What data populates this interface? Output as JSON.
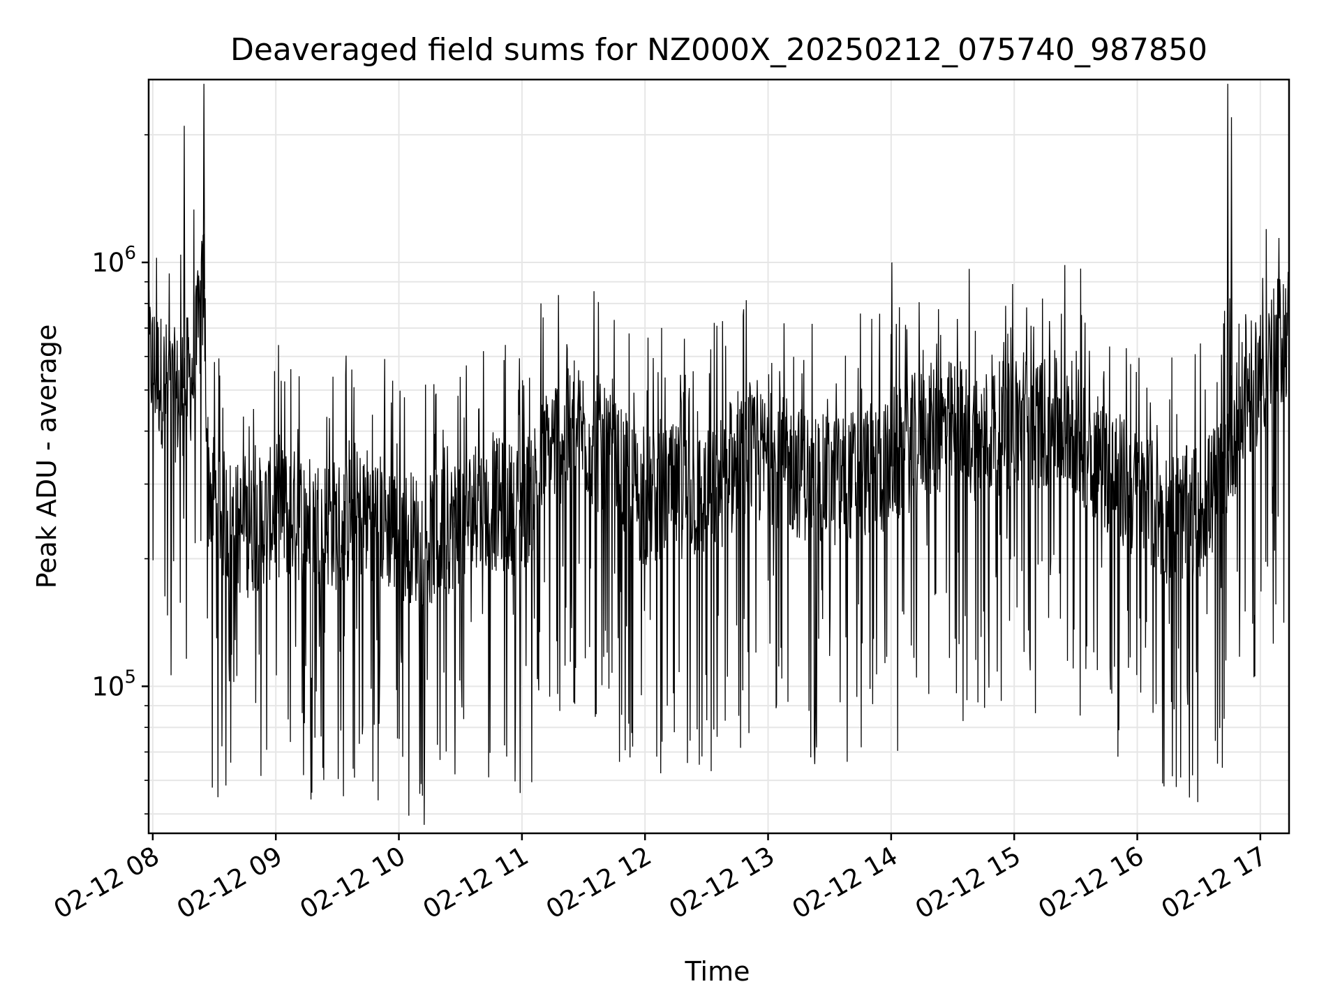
{
  "chart_data": {
    "type": "line",
    "title": "Deaveraged field sums for NZ000X_20250212_075740_987850",
    "xlabel": "Time",
    "ylabel": "Peak ADU - average",
    "yscale": "log",
    "ylim": [
      45000,
      2700000
    ],
    "xlim": [
      "2025-02-12 07:58",
      "2025-02-12 17:14"
    ],
    "grid": true,
    "line_color": "#000000",
    "x_ticks": [
      {
        "value": "2025-02-12 08:00",
        "label": "02-12 08"
      },
      {
        "value": "2025-02-12 09:00",
        "label": "02-12 09"
      },
      {
        "value": "2025-02-12 10:00",
        "label": "02-12 10"
      },
      {
        "value": "2025-02-12 11:00",
        "label": "02-12 11"
      },
      {
        "value": "2025-02-12 12:00",
        "label": "02-12 12"
      },
      {
        "value": "2025-02-12 13:00",
        "label": "02-12 13"
      },
      {
        "value": "2025-02-12 14:00",
        "label": "02-12 14"
      },
      {
        "value": "2025-02-12 15:00",
        "label": "02-12 15"
      },
      {
        "value": "2025-02-12 16:00",
        "label": "02-12 16"
      },
      {
        "value": "2025-02-12 17:00",
        "label": "02-12 17"
      }
    ],
    "y_ticks": [
      {
        "value": 100000,
        "base": "10",
        "exp": "5"
      },
      {
        "value": 1000000,
        "base": "10",
        "exp": "6"
      }
    ],
    "series": [
      {
        "x": [
          "2025-02-12 07:58",
          "2025-02-12 08:05",
          "2025-02-12 08:12",
          "2025-02-12 08:20",
          "2025-02-12 08:25",
          "2025-02-12 08:27",
          "2025-02-12 08:35",
          "2025-02-12 08:45",
          "2025-02-12 09:00",
          "2025-02-12 09:15",
          "2025-02-12 09:30",
          "2025-02-12 09:45",
          "2025-02-12 10:00",
          "2025-02-12 10:15",
          "2025-02-12 10:30",
          "2025-02-12 10:45",
          "2025-02-12 11:00",
          "2025-02-12 11:15",
          "2025-02-12 11:30",
          "2025-02-12 11:45",
          "2025-02-12 12:00",
          "2025-02-12 12:15",
          "2025-02-12 12:30",
          "2025-02-12 12:45",
          "2025-02-12 13:00",
          "2025-02-12 13:15",
          "2025-02-12 13:30",
          "2025-02-12 13:45",
          "2025-02-12 14:00",
          "2025-02-12 14:15",
          "2025-02-12 14:30",
          "2025-02-12 14:45",
          "2025-02-12 15:00",
          "2025-02-12 15:15",
          "2025-02-12 15:30",
          "2025-02-12 15:45",
          "2025-02-12 16:00",
          "2025-02-12 16:15",
          "2025-02-12 16:30",
          "2025-02-12 16:40",
          "2025-02-12 16:45",
          "2025-02-12 16:55",
          "2025-02-12 17:05",
          "2025-02-12 17:14"
        ],
        "y": [
          600000,
          520000,
          480000,
          550000,
          900000,
          300000,
          250000,
          230000,
          260000,
          250000,
          240000,
          260000,
          230000,
          220000,
          250000,
          270000,
          260000,
          380000,
          400000,
          330000,
          270000,
          290000,
          280000,
          330000,
          350000,
          320000,
          300000,
          320000,
          330000,
          400000,
          410000,
          390000,
          420000,
          420000,
          400000,
          330000,
          280000,
          250000,
          260000,
          300000,
          380000,
          500000,
          600000,
          700000
        ]
      }
    ]
  }
}
